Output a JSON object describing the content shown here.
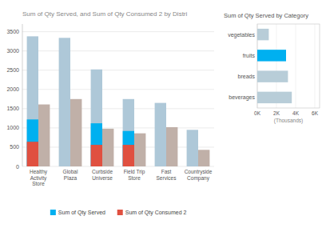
{
  "chart_data": [
    {
      "type": "bar",
      "title": "Sum of Qty Served, and Sum of Qty Consumed 2 by Distri",
      "categories": [
        "Healthy Activity\nStore",
        "Global Plaza",
        "Curbside Universe",
        "Field Trip Store",
        "Fast Services",
        "Countryside\nCompany"
      ],
      "series": [
        {
          "color": "#aec8d8",
          "values": [
            3380,
            3340,
            2520,
            1750,
            1650,
            950
          ]
        },
        {
          "color": "#c0b0a8",
          "values": [
            1610,
            1750,
            980,
            860,
            1020,
            430
          ]
        },
        {
          "name": "Sum of Qty Served",
          "color": "#00b0f0",
          "values": [
            1220,
            0,
            1120,
            920,
            0,
            0
          ]
        },
        {
          "name": "Sum of Qty Consumed 2",
          "color": "#e05040",
          "values": [
            640,
            0,
            560,
            560,
            0,
            0
          ]
        }
      ],
      "ylim": [
        0,
        3700
      ],
      "yticks": [
        0,
        500,
        1000,
        1500,
        2000,
        2500,
        3000,
        3500
      ],
      "grid": true,
      "legend": "bottom"
    },
    {
      "type": "bar",
      "orientation": "horizontal",
      "title": "Sum of Qty Served by Category",
      "categories": [
        "beverages",
        "breads",
        "fruits",
        "vegetables"
      ],
      "values": [
        3600,
        3200,
        3000,
        1200
      ],
      "colors": [
        "#b8cdd8",
        "#b8cdd8",
        "#00b0f0",
        "#b8cdd8"
      ],
      "xlim": [
        0,
        6500
      ],
      "xticks": [
        {
          "value": 0,
          "label": "0K"
        },
        {
          "value": 2000,
          "label": "2K"
        },
        {
          "value": 4000,
          "label": "4K"
        },
        {
          "value": 6000,
          "label": "6K"
        }
      ],
      "xlabel": "(Thousands)",
      "grid": true
    }
  ]
}
